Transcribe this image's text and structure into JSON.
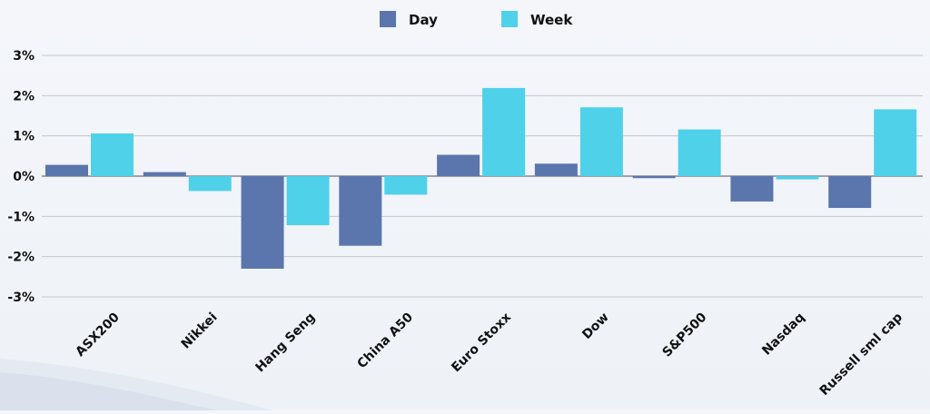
{
  "chart_data": {
    "type": "bar",
    "categories": [
      "ASX200",
      "Nikkei",
      "Hang Seng",
      "China A50",
      "Euro Stoxx",
      "Dow",
      "S&P500",
      "Nasdaq",
      "Russell sml cap"
    ],
    "series": [
      {
        "name": "Day",
        "color": "#5a76ac",
        "values": [
          0.28,
          0.1,
          -2.3,
          -1.73,
          0.53,
          0.31,
          -0.05,
          -0.63,
          -0.79
        ]
      },
      {
        "name": "Week",
        "color": "#4fd1ea",
        "values": [
          1.06,
          -0.37,
          -1.22,
          -0.46,
          2.19,
          1.71,
          1.16,
          -0.08,
          1.66
        ]
      }
    ],
    "yticks": [
      "3%",
      "2%",
      "1%",
      "0%",
      "-1%",
      "-2%",
      "-3%"
    ],
    "ylim": [
      -3,
      3
    ],
    "grid": true,
    "legend": "top-center",
    "title": "",
    "xlabel": "",
    "ylabel": ""
  }
}
